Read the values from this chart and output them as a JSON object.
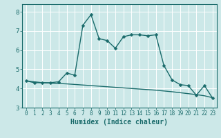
{
  "title": "",
  "xlabel": "Humidex (Indice chaleur)",
  "bg_color": "#cce8e8",
  "line_color": "#1a6b6b",
  "grid_color": "#ffffff",
  "y_upper": [
    4.4,
    4.3,
    4.3,
    4.3,
    4.35,
    4.8,
    4.7,
    7.3,
    7.85,
    6.6,
    6.5,
    6.1,
    6.7,
    6.8,
    6.8,
    6.75,
    6.8,
    5.2,
    4.45,
    4.2,
    4.15,
    3.65,
    4.15,
    3.5
  ],
  "y_lower": [
    4.4,
    4.35,
    4.3,
    4.28,
    4.26,
    4.24,
    4.21,
    4.18,
    4.15,
    4.12,
    4.09,
    4.06,
    4.03,
    4.0,
    3.97,
    3.94,
    3.91,
    3.87,
    3.83,
    3.78,
    3.73,
    3.68,
    3.62,
    3.52
  ],
  "ylim": [
    3.0,
    8.4
  ],
  "xlim": [
    -0.5,
    23.5
  ],
  "yticks": [
    3,
    4,
    5,
    6,
    7,
    8
  ],
  "xticks": [
    0,
    1,
    2,
    3,
    4,
    5,
    6,
    7,
    8,
    9,
    10,
    11,
    12,
    13,
    14,
    15,
    16,
    17,
    18,
    19,
    20,
    21,
    22,
    23
  ],
  "marker_size": 2.5,
  "linewidth": 1.0,
  "fontsize_tick": 5.5,
  "fontsize_label": 7.0
}
